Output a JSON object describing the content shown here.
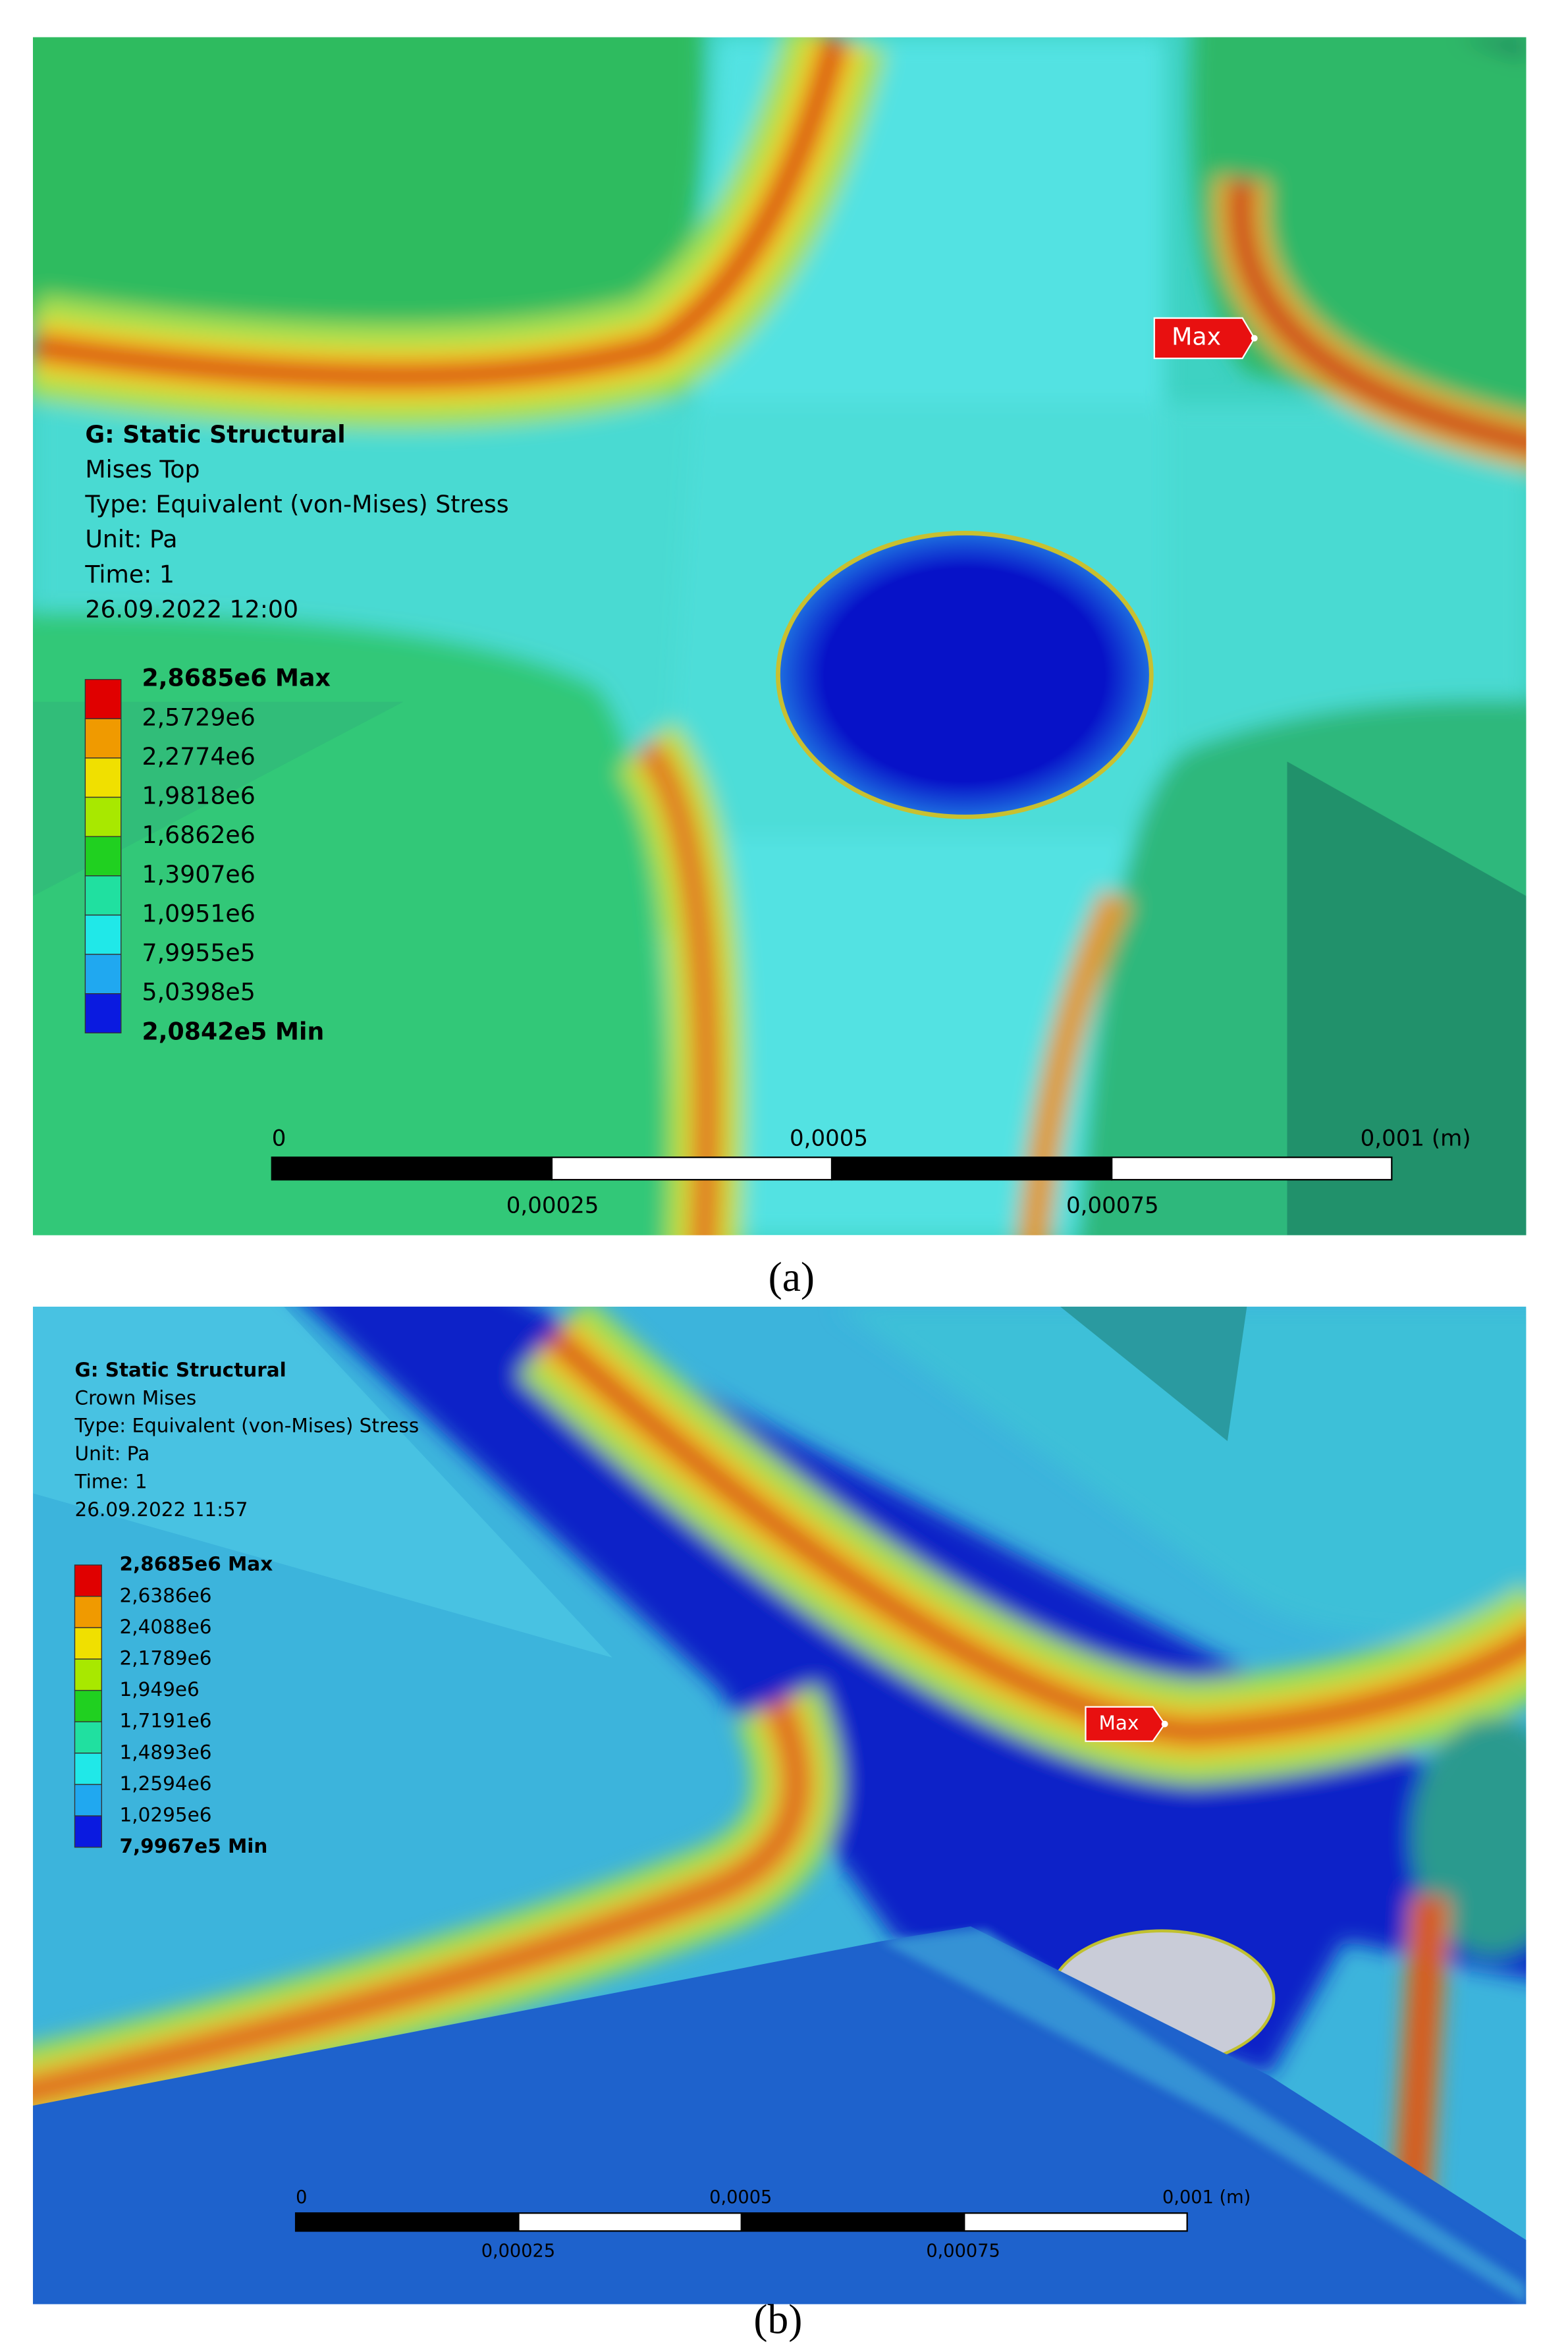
{
  "panels": [
    {
      "header": [
        "G: Static Structural",
        "Mises Top",
        "Type: Equivalent (von-Mises) Stress",
        "Unit: Pa",
        "Time: 1",
        "26.09.2022 12:00"
      ],
      "legend": [
        "2,8685e6 Max",
        "2,5729e6",
        "2,2774e6",
        "1,9818e6",
        "1,6862e6",
        "1,3907e6",
        "1,0951e6",
        "7,9955e5",
        "5,0398e5",
        "2,0842e5 Min"
      ],
      "max_tag": "Max",
      "scale_top": [
        "0",
        "0,0005",
        "0,001 (m)"
      ],
      "scale_bottom": [
        "0,00025",
        "0,00075"
      ],
      "caption": "(a)"
    },
    {
      "header": [
        "G: Static Structural",
        "Crown Mises",
        "Type: Equivalent (von-Mises) Stress",
        "Unit: Pa",
        "Time: 1",
        "26.09.2022 11:57"
      ],
      "legend": [
        "2,8685e6 Max",
        "2,6386e6",
        "2,4088e6",
        "2,1789e6",
        "1,949e6",
        "1,7191e6",
        "1,4893e6",
        "1,2594e6",
        "1,0295e6",
        "7,9967e5 Min"
      ],
      "max_tag": "Max",
      "scale_top": [
        "0",
        "0,0005",
        "0,001 (m)"
      ],
      "scale_bottom": [
        "0,00025",
        "0,00075"
      ],
      "caption": "(b)"
    }
  ]
}
